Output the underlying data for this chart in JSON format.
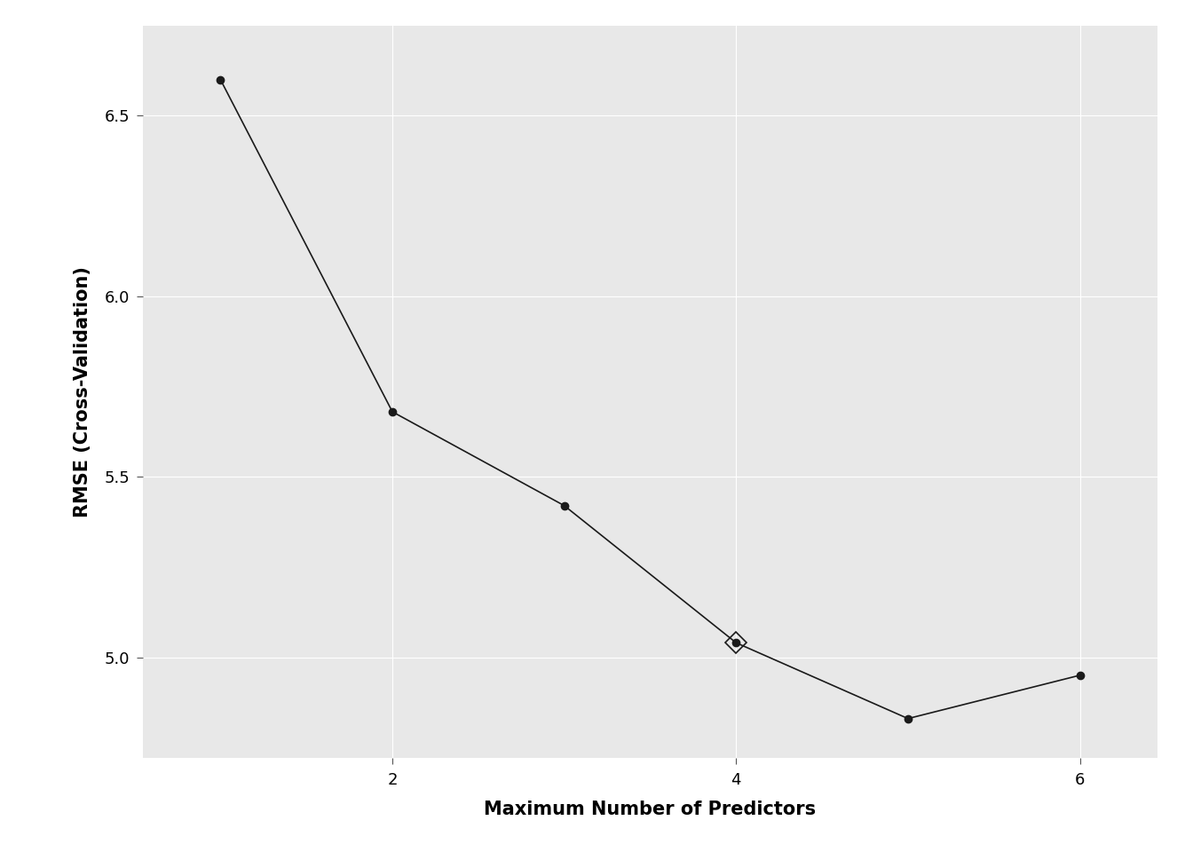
{
  "x": [
    1,
    2,
    3,
    4,
    5,
    6
  ],
  "y": [
    6.6,
    5.68,
    5.42,
    5.04,
    4.83,
    4.95
  ],
  "diamond_x": 4,
  "diamond_y": 5.04,
  "xlabel": "Maximum Number of Predictors",
  "ylabel": "RMSE (Cross-Validation)",
  "xlim": [
    0.55,
    6.45
  ],
  "ylim": [
    4.72,
    6.75
  ],
  "xticks": [
    2,
    4,
    6
  ],
  "yticks": [
    5.0,
    5.5,
    6.0,
    6.5
  ],
  "panel_background": "#E8E8E8",
  "outer_background": "#FFFFFF",
  "grid_color": "#FFFFFF",
  "line_color": "#1a1a1a",
  "marker_color": "#1a1a1a",
  "marker_size": 6,
  "line_width": 1.2,
  "axis_label_fontsize": 15,
  "tick_fontsize": 13
}
